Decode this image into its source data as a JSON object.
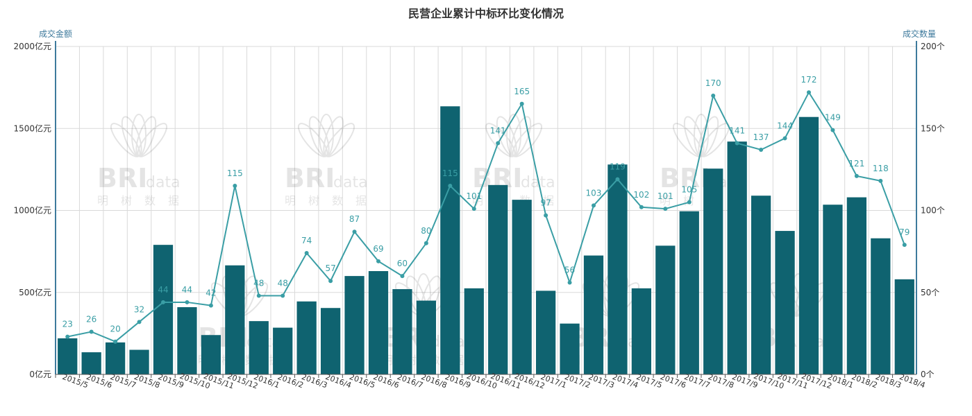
{
  "chart_data": {
    "type": "bar",
    "title": "民营企业累计中标环比变化情况",
    "watermark": "BRI data 明树数据",
    "colors": {
      "bar": "#0f6370",
      "line": "#3a9ea5",
      "axis": "#3e7a9c",
      "grid": "#d9d9d9",
      "text": "#333333"
    },
    "categories": [
      "2015/5",
      "2015/6",
      "2015/7",
      "2015/8",
      "2015/9",
      "2015/10",
      "2015/11",
      "2015/12",
      "2016/1",
      "2016/2",
      "2016/3",
      "2016/4",
      "2016/5",
      "2016/6",
      "2016/7",
      "2016/8",
      "2016/9",
      "2016/10",
      "2016/11",
      "2016/12",
      "2017/1",
      "2017/2",
      "2017/3",
      "2017/4",
      "2017/5",
      "2017/6",
      "2017/7",
      "2017/8",
      "2017/9",
      "2017/10",
      "2017/11",
      "2017/12",
      "2018/1",
      "2018/2",
      "2018/3",
      "2018/4"
    ],
    "y_left": {
      "name": "成交金额",
      "range": [
        0,
        2000
      ],
      "ticks": [
        "0亿元",
        "500亿元",
        "1000亿元",
        "1500亿元",
        "2000亿元"
      ]
    },
    "y_right": {
      "name": "成交数量",
      "range": [
        0,
        200
      ],
      "ticks": [
        "0个",
        "50个",
        "100个",
        "150个",
        "200个"
      ]
    },
    "grid": true,
    "series": [
      {
        "type": "bar",
        "axis": "left",
        "values": [
          220,
          135,
          195,
          150,
          790,
          410,
          240,
          665,
          325,
          285,
          445,
          405,
          600,
          630,
          520,
          450,
          1635,
          525,
          1155,
          1065,
          510,
          310,
          725,
          1280,
          525,
          785,
          995,
          1255,
          1420,
          1090,
          875,
          1570,
          1035,
          1080,
          830,
          580
        ]
      },
      {
        "type": "line",
        "axis": "right",
        "values": [
          23,
          26,
          20,
          32,
          44,
          44,
          42,
          115,
          48,
          48,
          74,
          57,
          87,
          69,
          60,
          80,
          115,
          101,
          141,
          165,
          97,
          56,
          103,
          119,
          102,
          101,
          105,
          170,
          141,
          137,
          144,
          172,
          149,
          121,
          118,
          79
        ],
        "labels": [
          "23",
          "26",
          "20",
          "32",
          "44",
          "44",
          "42",
          "115",
          "48",
          "48",
          "74",
          "57",
          "87",
          "69",
          "60",
          "80",
          "115",
          "101",
          "141",
          "165",
          "97",
          "56",
          "103",
          "119",
          "102",
          "101",
          "105",
          "170",
          "141",
          "137",
          "144",
          "172",
          "149",
          "121",
          "118",
          "79"
        ]
      }
    ]
  }
}
